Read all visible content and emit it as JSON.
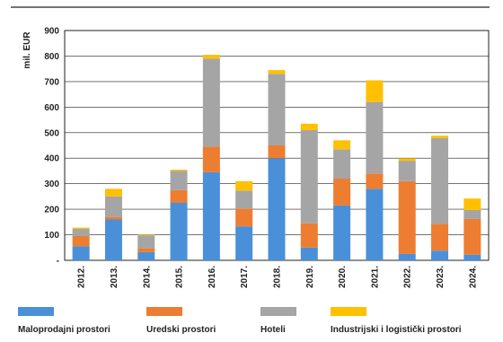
{
  "chart_data": {
    "type": "bar",
    "stacked": true,
    "ylabel": "mil. EUR",
    "ylim": [
      0,
      900
    ],
    "yticks": [
      "-",
      "100",
      "200",
      "300",
      "400",
      "500",
      "600",
      "700",
      "800",
      "900"
    ],
    "grid": true,
    "legend_position": "bottom",
    "categories": [
      "2012.",
      "2013.",
      "2014.",
      "2015.",
      "2016.",
      "2017.",
      "2018.",
      "2019.",
      "2020.",
      "2021.",
      "2022.",
      "2023.",
      "2024."
    ],
    "series": [
      {
        "name": "Maloprodajni prostori",
        "color": "#4A90D9",
        "values": [
          55,
          160,
          32,
          225,
          345,
          133,
          400,
          50,
          215,
          280,
          25,
          38,
          22
        ]
      },
      {
        "name": "Uredski prostori",
        "color": "#ED7D31",
        "values": [
          40,
          10,
          15,
          50,
          100,
          70,
          50,
          95,
          105,
          60,
          285,
          105,
          140
        ]
      },
      {
        "name": "Hoteli",
        "color": "#A5A5A5",
        "values": [
          28,
          80,
          50,
          75,
          345,
          70,
          280,
          365,
          115,
          280,
          80,
          335,
          35
        ]
      },
      {
        "name": "Industrijski i logistički prostori",
        "color": "#FFC000",
        "values": [
          5,
          30,
          3,
          5,
          15,
          37,
          15,
          25,
          35,
          85,
          10,
          10,
          45
        ]
      }
    ]
  }
}
